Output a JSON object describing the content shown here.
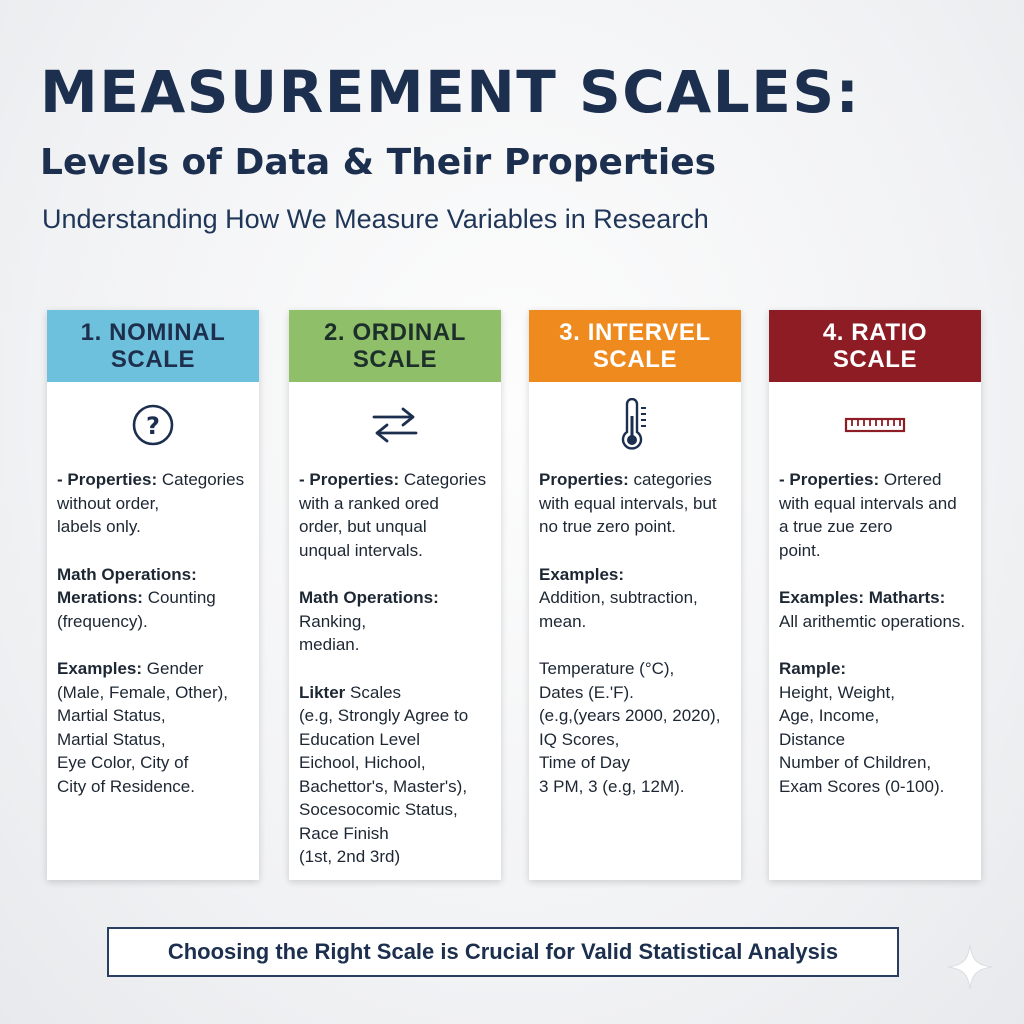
{
  "header": {
    "title": "MEASUREMENT SCALES:",
    "subtitle": "Levels of Data & Their Properties",
    "tagline": "Understanding How We Measure Variables in Research"
  },
  "colors": {
    "nominal": "#6ec1dc",
    "ordinal": "#8fbf68",
    "interval": "#ef8a1f",
    "ratio": "#8e1c24",
    "title": "#1c2f4e"
  },
  "cards": [
    {
      "title": "1. NOMINAL\nSCALE",
      "icon": "question-circle-icon",
      "blocks": [
        [
          [
            {
              "t": "- Properties:",
              "b": true
            },
            {
              "t": " Categories"
            }
          ],
          [
            {
              "t": "without order,"
            }
          ],
          [
            {
              "t": "labels only."
            }
          ]
        ],
        [
          [
            {
              "t": "Math Operations:",
              "b": true
            }
          ],
          [
            {
              "t": "Merations:",
              "b": true
            },
            {
              "t": " Counting"
            }
          ],
          [
            {
              "t": "(frequency)."
            }
          ]
        ],
        [
          [
            {
              "t": "Examples:",
              "b": true
            },
            {
              "t": " Gender"
            }
          ],
          [
            {
              "t": "(Male, Female, Other),"
            }
          ],
          [
            {
              "t": "Martial Status,"
            }
          ],
          [
            {
              "t": "Martial Status,"
            }
          ],
          [
            {
              "t": "Eye Color, City of"
            }
          ],
          [
            {
              "t": "City of Residence."
            }
          ]
        ]
      ]
    },
    {
      "title": "2. ORDINAL\nSCALE",
      "icon": "swap-arrows-icon",
      "blocks": [
        [
          [
            {
              "t": "- Properties:",
              "b": true
            },
            {
              "t": " Categories"
            }
          ],
          [
            {
              "t": "with a ranked ored"
            }
          ],
          [
            {
              "t": "order, but unqual"
            }
          ],
          [
            {
              "t": "unqual intervals."
            }
          ]
        ],
        [
          [
            {
              "t": "Math Operations:",
              "b": true
            }
          ],
          [
            {
              "t": "Ranking,"
            }
          ],
          [
            {
              "t": "median."
            }
          ]
        ],
        [
          [
            {
              "t": "Likter",
              "b": true
            },
            {
              "t": " Scales"
            }
          ],
          [
            {
              "t": "(e.g, Strongly Agree to"
            }
          ],
          [
            {
              "t": "Education Level"
            }
          ],
          [
            {
              "t": "Eichool, Hichool,"
            }
          ],
          [
            {
              "t": "Bachettor's, Master's),"
            }
          ],
          [
            {
              "t": "Socesocomic Status,"
            }
          ],
          [
            {
              "t": "Race Finish"
            }
          ],
          [
            {
              "t": "(1st, 2nd 3rd)"
            }
          ]
        ]
      ]
    },
    {
      "title": "3. INTERVEL\nSCALE",
      "icon": "thermometer-icon",
      "blocks": [
        [
          [
            {
              "t": "Properties:",
              "b": true
            },
            {
              "t": " categories"
            }
          ],
          [
            {
              "t": "with equal intervals, but"
            }
          ],
          [
            {
              "t": "no true zero point."
            }
          ]
        ],
        [
          [
            {
              "t": "Examples:",
              "b": true
            }
          ],
          [
            {
              "t": "Addition, subtraction,"
            }
          ],
          [
            {
              "t": "mean."
            }
          ]
        ],
        [
          [
            {
              "t": "Temperature (°C),"
            }
          ],
          [
            {
              "t": "Dates (E.'F)."
            }
          ],
          [
            {
              "t": "(e.g,(years 2000, 2020),"
            }
          ],
          [
            {
              "t": "IQ Scores,"
            }
          ],
          [
            {
              "t": "Time of Day"
            }
          ],
          [
            {
              "t": "3 PM, 3 (e.g, 12M)."
            }
          ]
        ]
      ]
    },
    {
      "title": "4. RATIO\nSCALE",
      "icon": "ruler-icon",
      "blocks": [
        [
          [
            {
              "t": "- Properties:",
              "b": true
            },
            {
              "t": " Ortered"
            }
          ],
          [
            {
              "t": "with equal intervals and"
            }
          ],
          [
            {
              "t": "a true zue zero"
            }
          ],
          [
            {
              "t": "point."
            }
          ]
        ],
        [
          [
            {
              "t": "Examples: Matharts:",
              "b": true
            }
          ],
          [
            {
              "t": "All arithemtic operations."
            }
          ]
        ],
        [
          [
            {
              "t": "Rample:",
              "b": true
            }
          ],
          [
            {
              "t": "Height, Weight,"
            }
          ],
          [
            {
              "t": "Age, Income,"
            }
          ],
          [
            {
              "t": "Distance"
            }
          ],
          [
            {
              "t": "Number of Children,"
            }
          ],
          [
            {
              "t": "Exam Scores (0-100)."
            }
          ]
        ]
      ]
    }
  ],
  "footer": {
    "text": "Choosing the Right Scale is Crucial for Valid Statistical Analysis"
  },
  "decoration": {
    "corner_icon": "sparkle-icon"
  }
}
